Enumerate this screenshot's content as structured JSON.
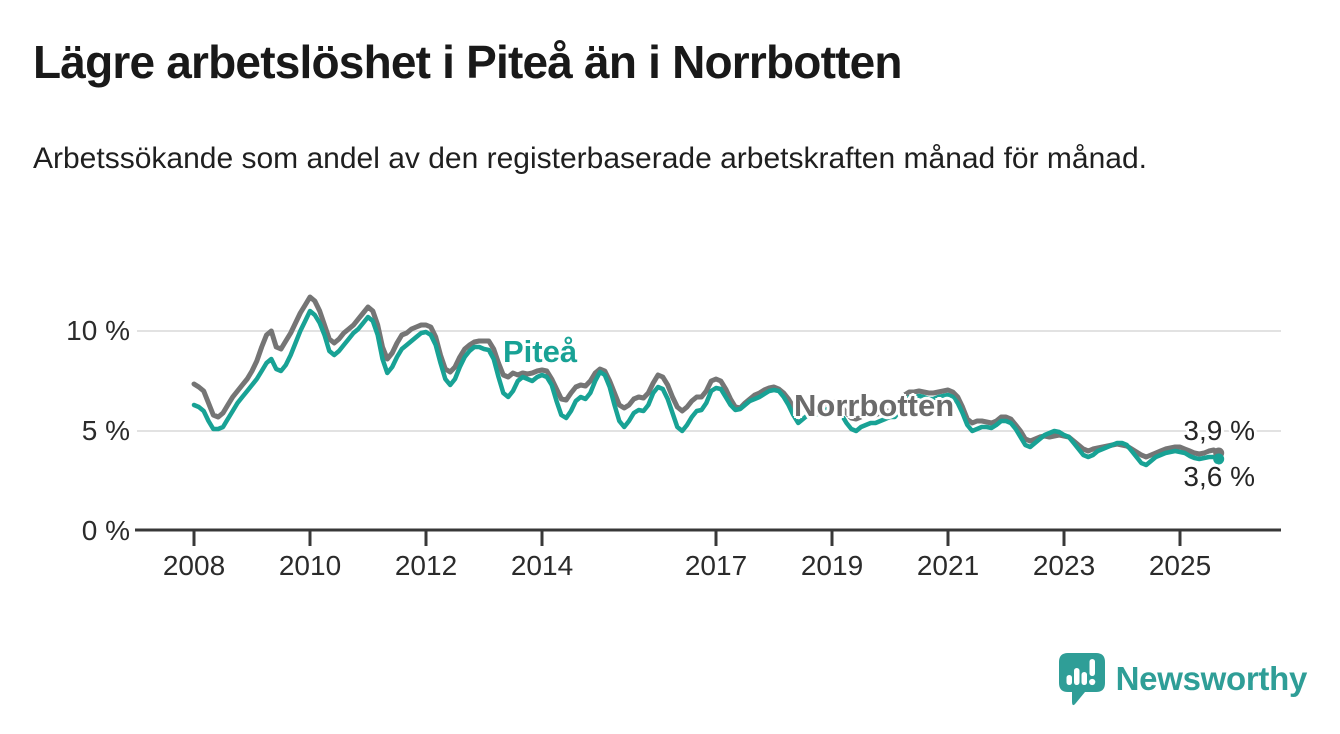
{
  "header": {
    "title": "Lägre arbetslöshet i Piteå än i Norrbotten",
    "subtitle": "Arbetssökande som andel av den registerbaserade arbetskraften månad för månad."
  },
  "chart_data": {
    "type": "line",
    "title": "Lägre arbetslöshet i Piteå än i Norrbotten",
    "subtitle": "Arbetssökande som andel av den registerbaserade arbetskraften månad för månad.",
    "unit": "%",
    "x_interval": "monthly",
    "x_start_year": 2008,
    "x_end_year_fraction": 2025.67,
    "xlim": [
      2007.0,
      2026.7
    ],
    "ylim": [
      0,
      12
    ],
    "grid": "horizontal-only",
    "grid_values": [
      5,
      10
    ],
    "x_tick_years": [
      2008,
      2010,
      2012,
      2014,
      2017,
      2019,
      2021,
      2023,
      2025
    ],
    "y_ticks": [
      {
        "value": 0,
        "label": "0 %"
      },
      {
        "value": 5,
        "label": "5 %"
      },
      {
        "value": 10,
        "label": "10 %"
      }
    ],
    "legend_position": "inline-labels",
    "series": [
      {
        "name": "Norrbotten",
        "color": "#757575",
        "label_color": "#6b6b6b",
        "end_label": "3,9 %",
        "final_value": 3.9,
        "values": [
          7.35,
          7.2,
          7.0,
          6.4,
          5.8,
          5.7,
          5.9,
          6.3,
          6.7,
          7.0,
          7.3,
          7.6,
          8.0,
          8.5,
          9.2,
          9.8,
          10.0,
          9.2,
          9.1,
          9.5,
          9.9,
          10.4,
          10.9,
          11.3,
          11.7,
          11.5,
          11.0,
          10.3,
          9.6,
          9.4,
          9.6,
          9.9,
          10.1,
          10.3,
          10.6,
          10.9,
          11.2,
          11.0,
          10.3,
          9.2,
          8.6,
          8.9,
          9.4,
          9.8,
          9.9,
          10.1,
          10.2,
          10.3,
          10.3,
          10.2,
          9.7,
          8.8,
          8.1,
          7.95,
          8.2,
          8.7,
          9.1,
          9.3,
          9.45,
          9.5,
          9.5,
          9.5,
          9.1,
          8.4,
          7.8,
          7.7,
          7.9,
          7.8,
          7.9,
          7.85,
          7.9,
          8.0,
          8.05,
          8.0,
          7.6,
          7.1,
          6.6,
          6.55,
          6.9,
          7.2,
          7.3,
          7.25,
          7.5,
          7.9,
          8.1,
          8.0,
          7.5,
          6.9,
          6.3,
          6.15,
          6.3,
          6.6,
          6.7,
          6.65,
          6.9,
          7.4,
          7.8,
          7.7,
          7.3,
          6.7,
          6.2,
          6.0,
          6.2,
          6.5,
          6.7,
          6.7,
          7.0,
          7.5,
          7.6,
          7.5,
          7.1,
          6.6,
          6.2,
          6.15,
          6.4,
          6.6,
          6.8,
          6.9,
          7.05,
          7.15,
          7.2,
          7.1,
          6.9,
          6.6,
          6.2,
          6.0,
          6.1,
          6.2,
          6.25,
          6.2,
          6.3,
          6.4,
          6.45,
          6.4,
          6.2,
          5.9,
          5.65,
          5.6,
          5.7,
          5.8,
          5.8,
          5.8,
          5.9,
          6.0,
          6.0,
          6.0,
          6.3,
          6.8,
          6.95,
          6.95,
          7.0,
          6.95,
          6.9,
          6.9,
          6.95,
          7.0,
          7.05,
          6.95,
          6.7,
          6.2,
          5.6,
          5.4,
          5.5,
          5.5,
          5.45,
          5.4,
          5.5,
          5.7,
          5.7,
          5.6,
          5.3,
          5.0,
          4.6,
          4.5,
          4.6,
          4.7,
          4.75,
          4.7,
          4.75,
          4.8,
          4.75,
          4.7,
          4.5,
          4.3,
          4.1,
          4.0,
          4.1,
          4.15,
          4.2,
          4.25,
          4.3,
          4.35,
          4.3,
          4.25,
          4.1,
          3.95,
          3.8,
          3.7,
          3.8,
          3.9,
          4.0,
          4.1,
          4.15,
          4.2,
          4.2,
          4.1,
          4.0,
          3.9,
          3.85,
          3.9,
          4.0,
          4.05,
          3.9
        ]
      },
      {
        "name": "Piteå",
        "color": "#18a295",
        "label_color": "#18a295",
        "end_label": "3,6 %",
        "final_value": 3.6,
        "values": [
          6.3,
          6.2,
          6.0,
          5.5,
          5.1,
          5.1,
          5.2,
          5.6,
          6.0,
          6.4,
          6.7,
          7.0,
          7.3,
          7.6,
          8.0,
          8.4,
          8.6,
          8.1,
          8.0,
          8.3,
          8.8,
          9.4,
          10.0,
          10.5,
          11.0,
          10.8,
          10.4,
          9.8,
          9.0,
          8.8,
          9.0,
          9.3,
          9.6,
          9.9,
          10.1,
          10.4,
          10.7,
          10.5,
          9.8,
          8.6,
          7.9,
          8.2,
          8.7,
          9.1,
          9.3,
          9.5,
          9.7,
          9.9,
          9.95,
          9.8,
          9.3,
          8.4,
          7.6,
          7.3,
          7.6,
          8.2,
          8.7,
          9.0,
          9.2,
          9.2,
          9.1,
          9.05,
          8.6,
          7.7,
          6.9,
          6.7,
          7.0,
          7.5,
          7.7,
          7.6,
          7.5,
          7.7,
          7.8,
          7.7,
          7.3,
          6.5,
          5.8,
          5.65,
          6.0,
          6.5,
          6.7,
          6.6,
          6.9,
          7.5,
          7.95,
          7.8,
          7.2,
          6.3,
          5.5,
          5.2,
          5.5,
          5.9,
          6.05,
          6.0,
          6.3,
          6.9,
          7.2,
          7.1,
          6.6,
          5.9,
          5.2,
          5.0,
          5.3,
          5.7,
          6.0,
          6.05,
          6.4,
          7.0,
          7.15,
          7.1,
          6.7,
          6.3,
          6.05,
          6.1,
          6.3,
          6.5,
          6.6,
          6.7,
          6.85,
          7.0,
          7.05,
          7.0,
          6.7,
          6.3,
          5.8,
          5.4,
          5.6,
          5.8,
          5.9,
          5.85,
          5.95,
          6.1,
          6.15,
          6.1,
          5.8,
          5.4,
          5.1,
          5.0,
          5.2,
          5.3,
          5.4,
          5.4,
          5.5,
          5.6,
          5.7,
          5.7,
          6.0,
          6.5,
          6.7,
          6.7,
          6.75,
          6.7,
          6.6,
          6.6,
          6.7,
          6.75,
          6.8,
          6.7,
          6.4,
          5.9,
          5.3,
          5.0,
          5.1,
          5.2,
          5.2,
          5.15,
          5.3,
          5.5,
          5.5,
          5.4,
          5.1,
          4.7,
          4.3,
          4.2,
          4.4,
          4.6,
          4.8,
          4.9,
          5.0,
          4.95,
          4.8,
          4.7,
          4.4,
          4.1,
          3.8,
          3.7,
          3.8,
          4.0,
          4.1,
          4.2,
          4.3,
          4.4,
          4.4,
          4.3,
          4.0,
          3.7,
          3.4,
          3.3,
          3.5,
          3.7,
          3.8,
          3.9,
          3.95,
          4.0,
          3.95,
          3.9,
          3.75,
          3.65,
          3.6,
          3.65,
          3.7,
          3.7,
          3.6
        ]
      }
    ]
  },
  "branding": {
    "name": "Newsworthy",
    "logo_icon": "bar-chart-speech-bubble",
    "color": "#2f9e97"
  },
  "colors": {
    "pitea_line": "#18a295",
    "norrbotten_line": "#757575",
    "gridline": "#d9d9d9",
    "axis": "#383838",
    "text": "#1f1f1f"
  }
}
